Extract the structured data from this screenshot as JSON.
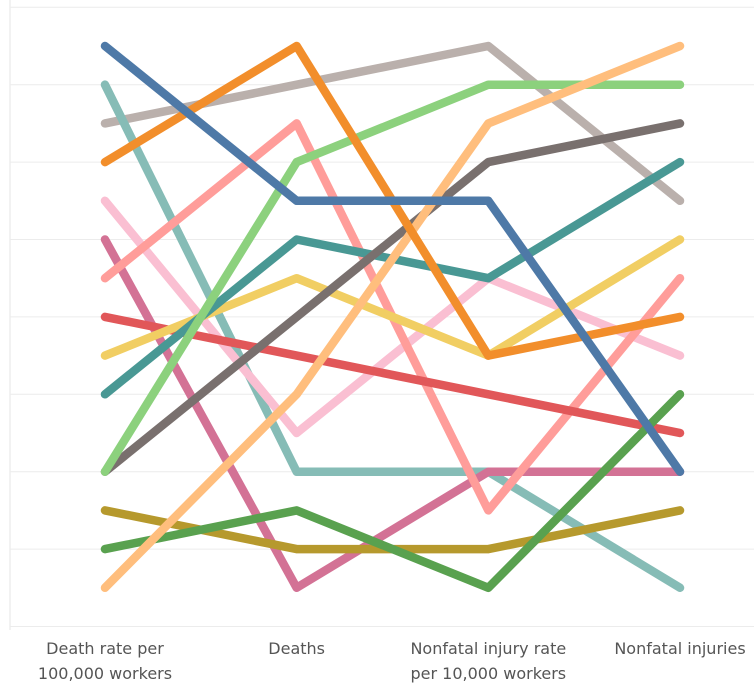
{
  "chart_data": {
    "type": "line",
    "categories": [
      "Death rate per\n100,000 workers",
      "Deaths",
      "Nonfatal injury  rate\nper 10,000 workers",
      "Nonfatal injuries"
    ],
    "ylim": [
      16,
      0
    ],
    "yticks": [
      0,
      2,
      4,
      6,
      8,
      10,
      12,
      14,
      16
    ],
    "grid": true,
    "series": [
      {
        "color": "#bab0ac",
        "values": [
          3,
          2,
          1,
          5
        ]
      },
      {
        "color": "#86bcb6",
        "values": [
          2,
          12,
          12,
          15
        ]
      },
      {
        "color": "#d37295",
        "values": [
          6,
          15,
          12,
          12
        ]
      },
      {
        "color": "#fabfd2",
        "values": [
          5,
          11,
          7,
          9
        ]
      },
      {
        "color": "#ff9d9a",
        "values": [
          7,
          3,
          13,
          7
        ]
      },
      {
        "color": "#e15759",
        "values": [
          8,
          9,
          10,
          11
        ]
      },
      {
        "color": "#f1ce63",
        "values": [
          9,
          7,
          9,
          6
        ]
      },
      {
        "color": "#499894",
        "values": [
          10,
          6,
          7,
          4
        ]
      },
      {
        "color": "#79706e",
        "values": [
          12,
          8,
          4,
          3
        ]
      },
      {
        "color": "#b6992d",
        "values": [
          13,
          14,
          14,
          13
        ]
      },
      {
        "color": "#59a14f",
        "values": [
          14,
          13,
          15,
          10
        ]
      },
      {
        "color": "#8cd17d",
        "values": [
          12,
          4,
          2,
          2
        ]
      },
      {
        "color": "#ffbe7d",
        "values": [
          15,
          10,
          3,
          1
        ]
      },
      {
        "color": "#f28e2b",
        "values": [
          4,
          1,
          9,
          8
        ]
      },
      {
        "color": "#4e79a7",
        "values": [
          1,
          5,
          5,
          12
        ]
      }
    ]
  }
}
